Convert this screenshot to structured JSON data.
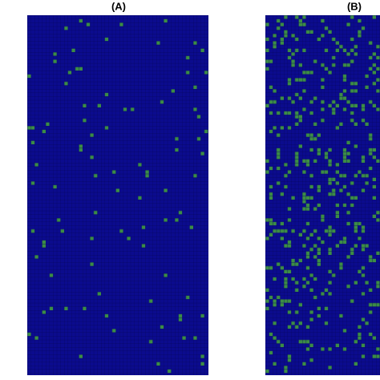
{
  "panels": [
    {
      "title": "(A)"
    },
    {
      "title": "(B)"
    }
  ]
}
